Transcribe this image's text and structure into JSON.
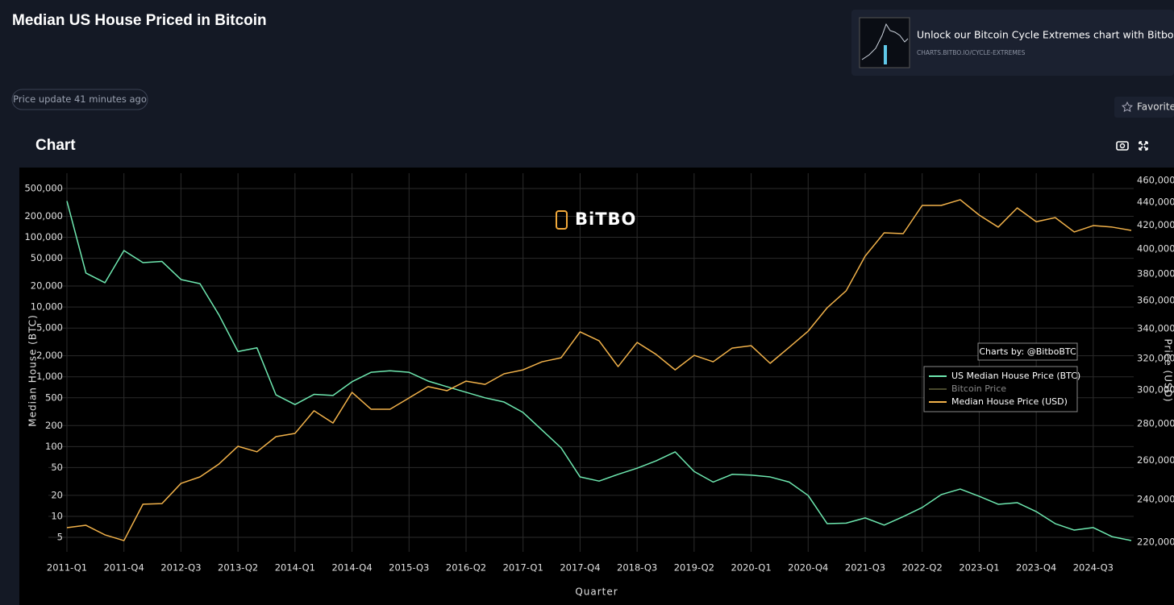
{
  "header": {
    "title": "Median US House Priced in Bitcoin",
    "status": "Price update 41 minutes ago",
    "favorite": "Favorite",
    "section": "Chart"
  },
  "promo": {
    "text": "Unlock our Bitcoin Cycle Extremes chart with Bitbo Pro.",
    "url": "CHARTS.BITBO.IO/CYCLE-EXTREMES"
  },
  "chart_data": {
    "type": "line",
    "watermark": "BiTBO",
    "credit": "Charts by: @BitboBTC",
    "x_label": "Quarter",
    "y_label": "Median House (BTC)",
    "y2_label": "Price (USD)",
    "categories": [
      "2011-Q1",
      null,
      null,
      "2011-Q4",
      null,
      null,
      "2012-Q3",
      null,
      null,
      "2013-Q2",
      null,
      null,
      "2014-Q1",
      null,
      null,
      "2014-Q4",
      null,
      null,
      "2015-Q3",
      null,
      null,
      "2016-Q2",
      null,
      null,
      "2017-Q1",
      null,
      null,
      "2017-Q4",
      null,
      null,
      "2018-Q3",
      null,
      null,
      "2019-Q2",
      null,
      null,
      "2020-Q1",
      null,
      null,
      "2020-Q4",
      null,
      null,
      "2021-Q3",
      null,
      null,
      "2022-Q2",
      null,
      null,
      "2023-Q1",
      null,
      null,
      "2023-Q4",
      null,
      null,
      "2024-Q3",
      null,
      null
    ],
    "log_y": true,
    "log_y2": true,
    "grid": true,
    "ylim": [
      3.1,
      828000
    ],
    "yticks": [
      5,
      10,
      20,
      50,
      100,
      200,
      500,
      {
        "value": 1000,
        "label": "1,000"
      },
      {
        "value": 2000,
        "label": "2,000"
      },
      {
        "value": 5000,
        "label": "5,000"
      },
      {
        "value": 10000,
        "label": "10,000"
      },
      {
        "value": 20000,
        "label": "20,000"
      },
      {
        "value": 50000,
        "label": "50,000"
      },
      {
        "value": 100000,
        "label": "100,000"
      },
      {
        "value": 200000,
        "label": "200,000"
      },
      {
        "value": 500000,
        "label": "500,000"
      }
    ],
    "y2lim": [
      215700,
      466800
    ],
    "y2ticks": [
      {
        "value": 220000,
        "label": "220,000"
      },
      {
        "value": 240000,
        "label": "240,000"
      },
      {
        "value": 260000,
        "label": "260,000"
      },
      {
        "value": 280000,
        "label": "280,000"
      },
      {
        "value": 300000,
        "label": "300,000"
      },
      {
        "value": 320000,
        "label": "320,000"
      },
      {
        "value": 340000,
        "label": "340,000"
      },
      {
        "value": 360000,
        "label": "360,000"
      },
      {
        "value": 380000,
        "label": "380,000"
      },
      {
        "value": 400000,
        "label": "400,000"
      },
      {
        "value": 420000,
        "label": "420,000"
      },
      {
        "value": 440000,
        "label": "440,000"
      },
      {
        "value": 460000,
        "label": "460,000"
      }
    ],
    "series": [
      {
        "name": "US Median House Price (BTC)",
        "color": "#6ee8b0",
        "axis": "y",
        "values": [
          330000,
          30700,
          22300,
          64600,
          43300,
          45000,
          24800,
          21600,
          7700,
          2300,
          2600,
          550,
          400,
          560,
          540,
          850,
          1160,
          1220,
          1160,
          870,
          720,
          600,
          500,
          435,
          308,
          172,
          96,
          36.7,
          32,
          40,
          49,
          62.5,
          84,
          44,
          31,
          40,
          39,
          36.7,
          31,
          19.9,
          7.85,
          8.0,
          9.5,
          7.5,
          9.9,
          13.4,
          20.5,
          24.6,
          19.4,
          14.9,
          15.7,
          11.7,
          7.85,
          6.35,
          6.9,
          5.1,
          4.5
        ]
      },
      {
        "name": "Bitcoin Price",
        "color": "#7a7a4a",
        "axis": "y2",
        "hidden": true
      },
      {
        "name": "Median House Price (USD)",
        "color": "#f2b24a",
        "axis": "y2",
        "values": [
          226600,
          227700,
          223300,
          220700,
          237700,
          238000,
          248000,
          251300,
          258000,
          267500,
          264500,
          272800,
          274600,
          287600,
          280500,
          298600,
          288500,
          288500,
          295200,
          302100,
          299600,
          305500,
          303500,
          310100,
          312600,
          317800,
          320400,
          337800,
          331700,
          314700,
          330600,
          322600,
          312600,
          322000,
          317800,
          326800,
          328400,
          316800,
          327300,
          338300,
          354800,
          367300,
          394200,
          413400,
          412700,
          437100,
          437100,
          442200,
          428600,
          418200,
          434900,
          422800,
          426400,
          414100,
          419500,
          418200,
          415400
        ]
      }
    ]
  }
}
